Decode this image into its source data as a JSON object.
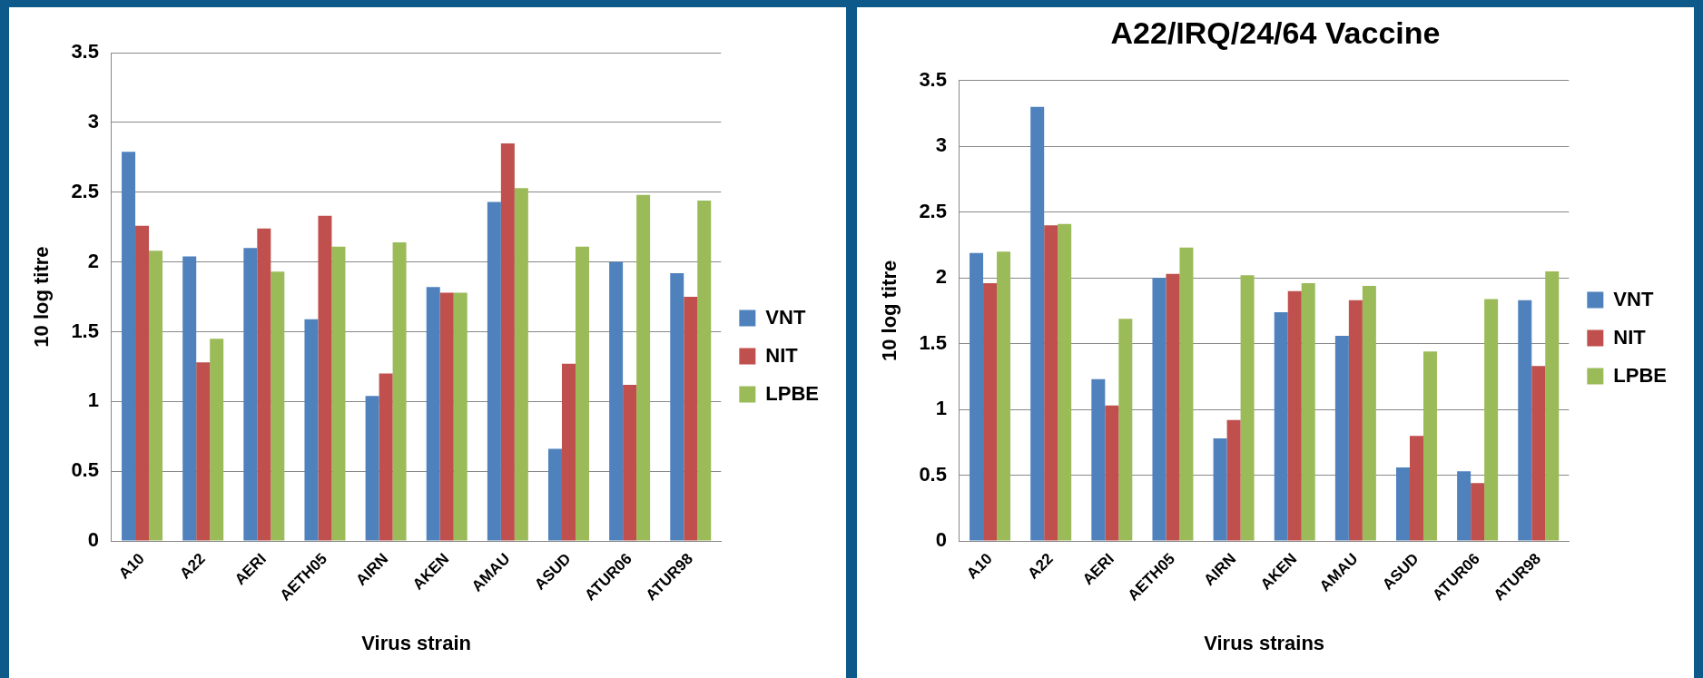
{
  "chart_data": [
    {
      "type": "bar",
      "xlabel": "Virus strain",
      "ylabel": "10 log titre",
      "categories": [
        "A10",
        "A22",
        "AERI",
        "AETH05",
        "AIRN",
        "AKEN",
        "AMAU",
        "ASUD",
        "ATUR06",
        "ATUR98"
      ],
      "series": [
        {
          "name": "VNT",
          "color": "#4f81bd",
          "values": [
            2.79,
            2.04,
            2.1,
            1.59,
            1.04,
            1.82,
            2.43,
            0.66,
            2.0,
            1.92
          ]
        },
        {
          "name": "NIT",
          "color": "#c0504d",
          "values": [
            2.26,
            1.28,
            2.24,
            2.33,
            1.2,
            1.78,
            2.85,
            1.27,
            1.12,
            1.75
          ]
        },
        {
          "name": "LPBE",
          "color": "#9bbb59",
          "values": [
            2.08,
            1.45,
            1.93,
            2.11,
            2.14,
            1.78,
            2.53,
            2.11,
            2.48,
            2.44
          ]
        }
      ],
      "ylim": [
        0,
        3.5
      ],
      "yticks": [
        0,
        0.5,
        1,
        1.5,
        2,
        2.5,
        3,
        3.5
      ],
      "grid": "y",
      "legend": "right"
    },
    {
      "type": "bar",
      "title": "A22/IRQ/24/64 Vaccine",
      "xlabel": "Virus strains",
      "ylabel": "10 log titre",
      "categories": [
        "A10",
        "A22",
        "AERI",
        "AETH05",
        "AIRN",
        "AKEN",
        "AMAU",
        "ASUD",
        "ATUR06",
        "ATUR98"
      ],
      "series": [
        {
          "name": "VNT",
          "color": "#4f81bd",
          "values": [
            2.19,
            3.3,
            1.23,
            2.0,
            0.78,
            1.74,
            1.56,
            0.56,
            0.53,
            1.83
          ]
        },
        {
          "name": "NIT",
          "color": "#c0504d",
          "values": [
            1.96,
            2.4,
            1.03,
            2.03,
            0.92,
            1.9,
            1.83,
            0.8,
            0.44,
            1.33
          ]
        },
        {
          "name": "LPBE",
          "color": "#9bbb59",
          "values": [
            2.2,
            2.41,
            1.69,
            2.23,
            2.02,
            1.96,
            1.94,
            1.44,
            1.84,
            2.05
          ]
        }
      ],
      "ylim": [
        0,
        3.5
      ],
      "yticks": [
        0,
        0.5,
        1,
        1.5,
        2,
        2.5,
        3,
        3.5
      ],
      "grid": "y",
      "legend": "right"
    }
  ]
}
